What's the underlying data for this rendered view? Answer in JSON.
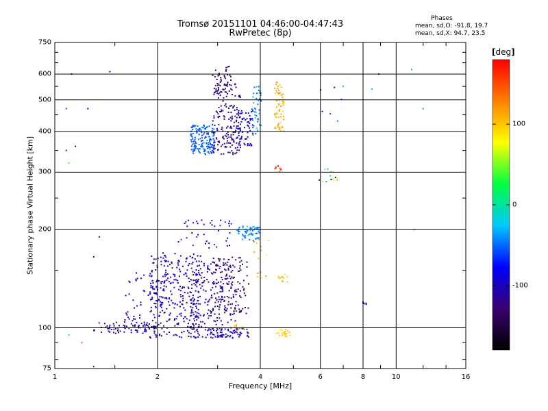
{
  "header": {
    "title": "Tromsø 20151101 04:46:00-04:47:43",
    "subtitle": "RwPretec (8p)"
  },
  "stats": {
    "title": "Phases",
    "line_o": "mean, sd,O: -91.8, 19.7",
    "line_x": "mean, sd,X:  94.7, 23.5"
  },
  "colorbar": {
    "unit_open": "[",
    "unit": "deg",
    "unit_close": "]",
    "min": -180,
    "max": 180,
    "ticks": [
      {
        "value": 100,
        "label": "100"
      },
      {
        "value": 0,
        "label": "0"
      },
      {
        "value": -100,
        "label": "-100"
      }
    ],
    "stops": [
      "#000000",
      "#3a006e",
      "#0000ff",
      "#00c8ff",
      "#00ff40",
      "#ffff00",
      "#ff8000",
      "#ff0000"
    ]
  },
  "chart_data": {
    "type": "scatter",
    "title": "Tromsø 20151101 04:46:00-04:47:43",
    "subtitle": "RwPretec (8p)",
    "xlabel": "Frequency [MHz]",
    "ylabel": "Stationary phase Virtual Height [km]",
    "x_scale": "log",
    "y_scale": "log",
    "xlim": [
      1,
      16
    ],
    "ylim": [
      75,
      750
    ],
    "x_ticks": [
      1,
      2,
      4,
      6,
      8,
      10,
      16
    ],
    "y_ticks": [
      75,
      100,
      200,
      300,
      400,
      500,
      600,
      750
    ],
    "x_grid": [
      2,
      4,
      6,
      8,
      10
    ],
    "y_grid": [
      100,
      200,
      300,
      400,
      500,
      600
    ],
    "grid": true,
    "clusters": [
      {
        "x": [
          1.3,
          2.0
        ],
        "y": [
          96,
          104
        ],
        "phase": [
          -115,
          -85
        ],
        "n": 70
      },
      {
        "x": [
          1.6,
          2.1
        ],
        "y": [
          100,
          150
        ],
        "phase": [
          -110,
          -80
        ],
        "n": 70
      },
      {
        "x": [
          1.9,
          2.7
        ],
        "y": [
          93,
          170
        ],
        "phase": [
          -115,
          -80
        ],
        "n": 300
      },
      {
        "x": [
          2.5,
          3.4
        ],
        "y": [
          93,
          160
        ],
        "phase": [
          -125,
          -85
        ],
        "n": 220
      },
      {
        "x": [
          2.9,
          3.7
        ],
        "y": [
          110,
          165
        ],
        "phase": [
          -150,
          -120
        ],
        "n": 100
      },
      {
        "x": [
          2.8,
          3.7
        ],
        "y": [
          93,
          100
        ],
        "phase": [
          -105,
          -80
        ],
        "n": 60
      },
      {
        "x": [
          3.4,
          4.0
        ],
        "y": [
          185,
          205
        ],
        "phase": [
          -55,
          -25
        ],
        "n": 60
      },
      {
        "x": [
          2.3,
          3.3
        ],
        "y": [
          175,
          215
        ],
        "phase": [
          -95,
          -60
        ],
        "n": 40
      },
      {
        "x": [
          3.3,
          3.7
        ],
        "y": [
          96,
          102
        ],
        "phase": [
          60,
          110
        ],
        "n": 8
      },
      {
        "x": [
          4.45,
          4.9
        ],
        "y": [
          94,
          99
        ],
        "phase": [
          80,
          115
        ],
        "n": 25
      },
      {
        "x": [
          4.5,
          4.85
        ],
        "y": [
          138,
          146
        ],
        "phase": [
          85,
          115
        ],
        "n": 12
      },
      {
        "x": [
          3.75,
          4.3
        ],
        "y": [
          140,
          190
        ],
        "phase": [
          70,
          140
        ],
        "n": 15
      },
      {
        "x": [
          2.5,
          2.95
        ],
        "y": [
          340,
          420
        ],
        "phase": [
          -70,
          -40
        ],
        "n": 160
      },
      {
        "x": [
          2.9,
          3.5
        ],
        "y": [
          340,
          560
        ],
        "phase": [
          -130,
          -100
        ],
        "n": 170
      },
      {
        "x": [
          2.9,
          3.3
        ],
        "y": [
          520,
          640
        ],
        "phase": [
          -150,
          -120
        ],
        "n": 40
      },
      {
        "x": [
          3.4,
          3.8
        ],
        "y": [
          360,
          470
        ],
        "phase": [
          -110,
          -80
        ],
        "n": 70
      },
      {
        "x": [
          3.8,
          4.05
        ],
        "y": [
          390,
          560
        ],
        "phase": [
          -60,
          -25
        ],
        "n": 40
      },
      {
        "x": [
          4.4,
          4.7
        ],
        "y": [
          400,
          570
        ],
        "phase": [
          90,
          130
        ],
        "n": 60
      },
      {
        "x": [
          4.4,
          4.6
        ],
        "y": [
          300,
          315
        ],
        "phase": [
          140,
          170
        ],
        "n": 10
      },
      {
        "x": [
          5.7,
          6.8
        ],
        "y": [
          280,
          310
        ],
        "phase": [
          -100,
          130
        ],
        "n": 14
      },
      {
        "x": [
          6.0,
          7.0
        ],
        "y": [
          420,
          560
        ],
        "phase": [
          -120,
          -40
        ],
        "n": 6
      },
      {
        "x": [
          8.0,
          8.2
        ],
        "y": [
          118,
          120
        ],
        "phase": [
          -100,
          -90
        ],
        "n": 5
      }
    ],
    "points": [
      {
        "x": 1.08,
        "y": 470,
        "phase": -60
      },
      {
        "x": 1.12,
        "y": 600,
        "phase": -100
      },
      {
        "x": 1.08,
        "y": 350,
        "phase": -100
      },
      {
        "x": 1.15,
        "y": 360,
        "phase": -110
      },
      {
        "x": 1.45,
        "y": 610,
        "phase": -120
      },
      {
        "x": 1.25,
        "y": 470,
        "phase": -120
      },
      {
        "x": 1.1,
        "y": 320,
        "phase": 40
      },
      {
        "x": 1.3,
        "y": 165,
        "phase": -100
      },
      {
        "x": 1.35,
        "y": 190,
        "phase": -90
      },
      {
        "x": 1.1,
        "y": 95,
        "phase": -20
      },
      {
        "x": 1.2,
        "y": 90,
        "phase": 150
      },
      {
        "x": 1.3,
        "y": 76,
        "phase": -80
      },
      {
        "x": 8.9,
        "y": 600,
        "phase": -140
      },
      {
        "x": 11.1,
        "y": 620,
        "phase": -30
      },
      {
        "x": 12.0,
        "y": 470,
        "phase": -40
      },
      {
        "x": 11.3,
        "y": 200,
        "phase": -40
      },
      {
        "x": 8.5,
        "y": 540,
        "phase": -30
      },
      {
        "x": 7.0,
        "y": 550,
        "phase": -30
      }
    ]
  }
}
